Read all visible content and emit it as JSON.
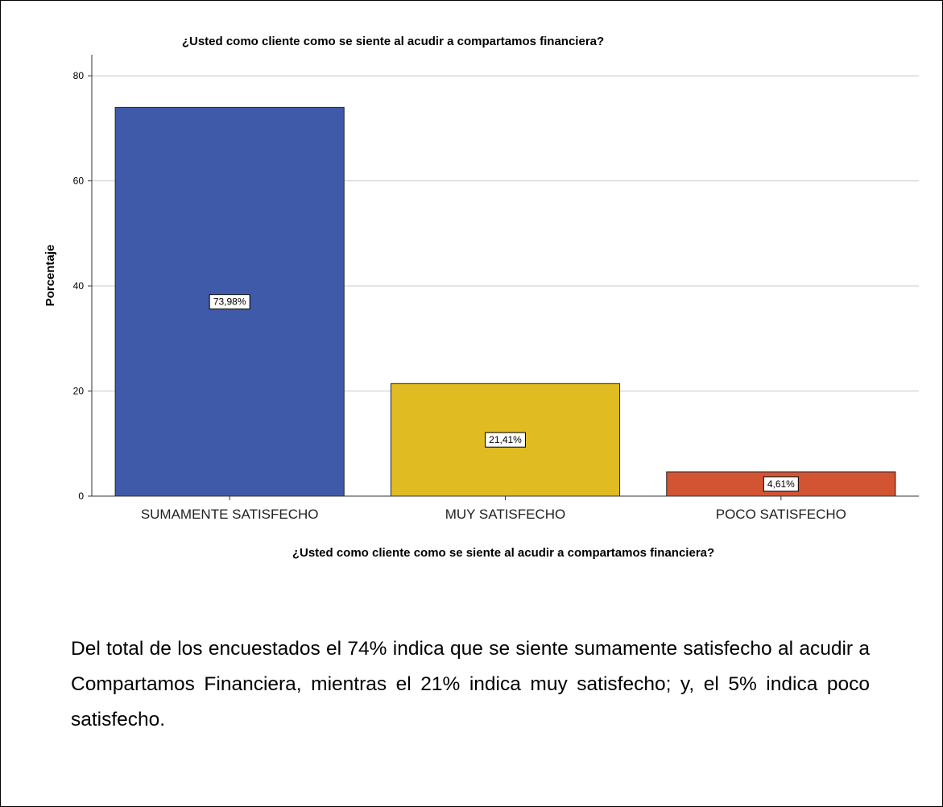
{
  "chart_data": {
    "type": "bar",
    "title": "¿Usted como cliente como se siente al acudir a compartamos financiera?",
    "xlabel": "¿Usted como cliente como se siente al acudir a compartamos financiera?",
    "ylabel": "Porcentaje",
    "categories": [
      "SUMAMENTE SATISFECHO",
      "MUY SATISFECHO",
      "POCO SATISFECHO"
    ],
    "values": [
      73.98,
      21.41,
      4.61
    ],
    "data_labels": [
      "73,98%",
      "21,41%",
      "4,61%"
    ],
    "colors": [
      "#3e5aa8",
      "#e0bb22",
      "#d35433"
    ],
    "ylim": [
      0,
      84
    ],
    "yticks": [
      0,
      20,
      40,
      60,
      80
    ],
    "grid": true,
    "legend": "none"
  },
  "caption": "Del total de los encuestados el 74% indica que se siente sumamente satisfecho al acudir a Compartamos Financiera, mientras el 21% indica muy satisfecho; y, el 5% indica poco satisfecho."
}
